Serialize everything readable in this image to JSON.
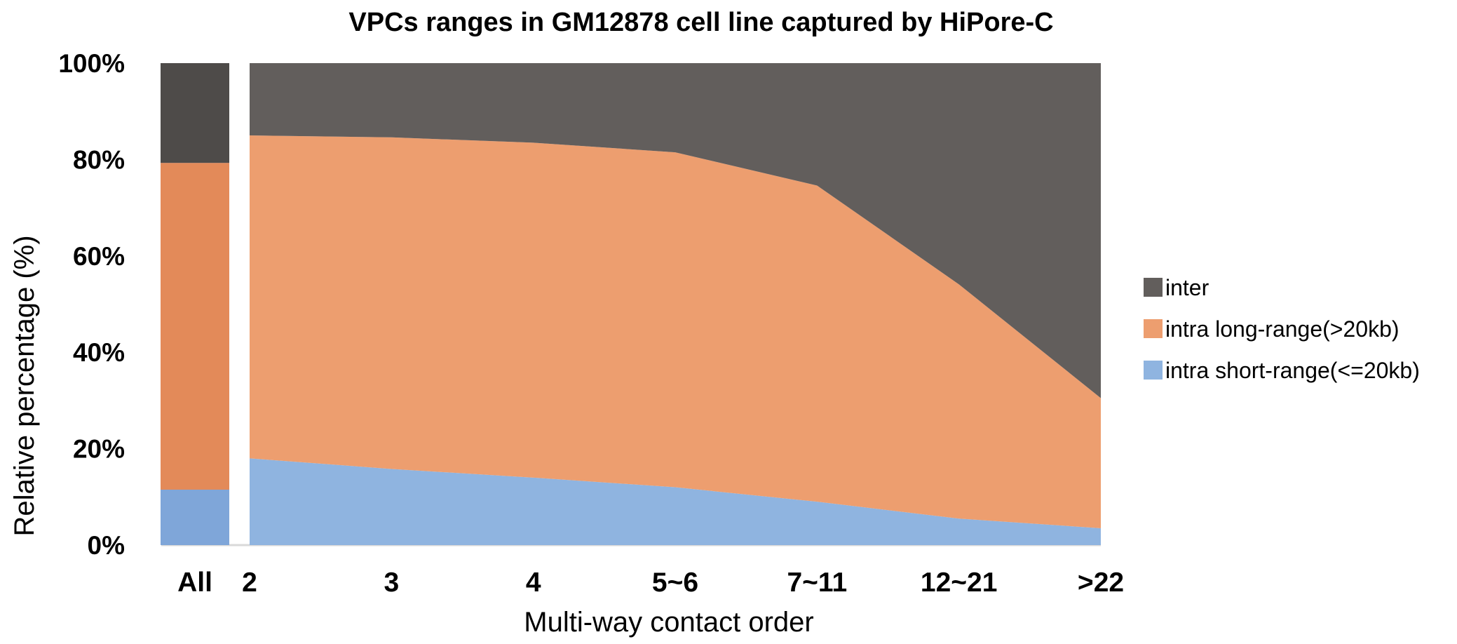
{
  "chart_data": {
    "type": "area",
    "title": "VPCs ranges in GM12878 cell line captured by HiPore-C",
    "xlabel": "Multi-way contact order",
    "ylabel": "Relative percentage (%)",
    "ylim": [
      0,
      100
    ],
    "y_ticks": [
      "0%",
      "20%",
      "40%",
      "60%",
      "80%",
      "100%"
    ],
    "legend_position": "right",
    "summary_bar": {
      "category": "All",
      "values": {
        "intra short-range(<=20kb)": 11.5,
        "intra long-range(>20kb)": 67.8,
        "inter": 20.7
      }
    },
    "categories": [
      "2",
      "3",
      "4",
      "5~6",
      "7~11",
      "12~21",
      ">22"
    ],
    "series": [
      {
        "name": "intra short-range(<=20kb)",
        "color": "#8fb4e0",
        "bar_color": "#7fa6d9",
        "values": [
          18,
          15.8,
          14,
          12,
          9,
          5.5,
          3.5
        ]
      },
      {
        "name": "intra long-range(>20kb)",
        "color": "#ed9e6f",
        "bar_color": "#e38a59",
        "values": [
          67,
          68.8,
          69.5,
          69.5,
          65.6,
          48.6,
          27
        ]
      },
      {
        "name": "inter",
        "color": "#625e5c",
        "bar_color": "#4e4b49",
        "values": [
          15,
          15.4,
          16.5,
          18.5,
          25.4,
          45.9,
          69.5
        ]
      }
    ],
    "legend": [
      "inter",
      "intra long-range(>20kb)",
      "intra short-range(<=20kb)"
    ]
  }
}
